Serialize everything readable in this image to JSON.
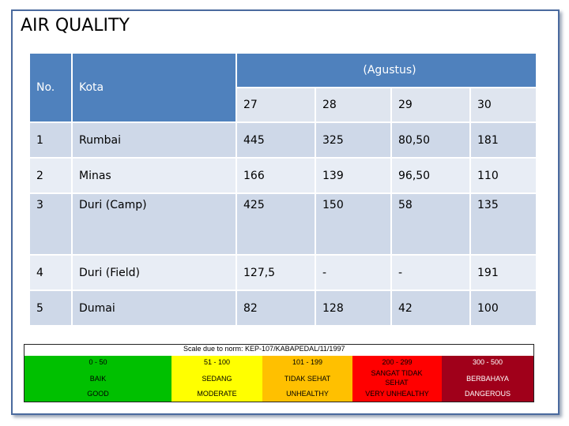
{
  "title": "AIR QUALITY",
  "table": {
    "col_no": "No.",
    "col_kota": "Kota",
    "col_period": "(Agustus)",
    "dates": [
      "27",
      "28",
      "29",
      "30"
    ],
    "rows": [
      {
        "no": "1",
        "kota": "Rumbai",
        "v": [
          "445",
          "325",
          "80,50",
          "181"
        ]
      },
      {
        "no": "2",
        "kota": "Minas",
        "v": [
          "166",
          "139",
          "96,50",
          "110"
        ]
      },
      {
        "no": "3",
        "kota": "Duri (Camp)",
        "v": [
          "425",
          "150",
          "58",
          "135"
        ]
      },
      {
        "no": "4",
        "kota": "Duri (Field)",
        "v": [
          "127,5",
          "-",
          "-",
          "191"
        ]
      },
      {
        "no": "5",
        "kota": "Dumai",
        "v": [
          "82",
          "128",
          "42",
          "100"
        ]
      }
    ]
  },
  "legend": {
    "caption": "Scale due to norm: KEP-107/KABAPEDAL/11/1997",
    "bands": [
      {
        "range": "0 - 50",
        "id": "BAIK",
        "en": "GOOD",
        "color": "#00c000"
      },
      {
        "range": "51 - 100",
        "id": "SEDANG",
        "en": "MODERATE",
        "color": "#ffff00"
      },
      {
        "range": "101 - 199",
        "id": "TIDAK SEHAT",
        "en": "UNHEALTHY",
        "color": "#ffc000"
      },
      {
        "range": "200 - 299",
        "id": "SANGAT TIDAK SEHAT",
        "en": "VERY UNHEALTHY",
        "color": "#ff0000"
      },
      {
        "range": "300 - 500",
        "id": "BERBAHAYA",
        "en": "DANGEROUS",
        "color": "#a0001a"
      }
    ]
  }
}
